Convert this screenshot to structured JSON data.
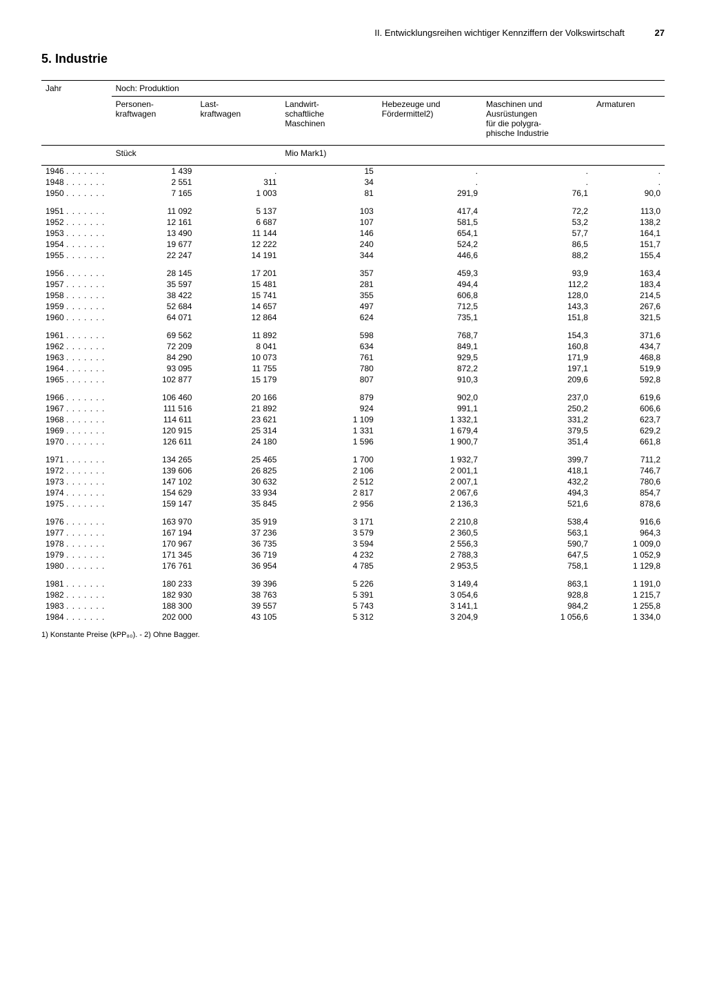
{
  "header": {
    "chapter": "II. Entwicklungsreihen wichtiger Kennziffern der Volkswirtschaft",
    "page_number": "27"
  },
  "section_title": "5. Industrie",
  "table": {
    "col_year": "Jahr",
    "col_group": "Noch: Produktion",
    "columns": [
      "Personen-\nkraftwagen",
      "Last-\nkraftwagen",
      "Landwirt-\nschaftliche\nMaschinen",
      "Hebezeuge und\nFördermittel2)",
      "Maschinen und\nAusrüstungen\nfür die polygra-\nphische Industrie",
      "Armaturen"
    ],
    "unit_left": "Stück",
    "unit_right": "Mio Mark1)",
    "groups": [
      [
        {
          "y": "1946",
          "c": [
            "1 439",
            ".",
            "15",
            ".",
            ".",
            "."
          ]
        },
        {
          "y": "1948",
          "c": [
            "2 551",
            "311",
            "34",
            ".",
            ".",
            "."
          ]
        },
        {
          "y": "1950",
          "c": [
            "7 165",
            "1 003",
            "81",
            "291,9",
            "76,1",
            "90,0"
          ]
        }
      ],
      [
        {
          "y": "1951",
          "c": [
            "11 092",
            "5 137",
            "103",
            "417,4",
            "72,2",
            "113,0"
          ]
        },
        {
          "y": "1952",
          "c": [
            "12 161",
            "6 687",
            "107",
            "581,5",
            "53,2",
            "138,2"
          ]
        },
        {
          "y": "1953",
          "c": [
            "13 490",
            "11 144",
            "146",
            "654,1",
            "57,7",
            "164,1"
          ]
        },
        {
          "y": "1954",
          "c": [
            "19 677",
            "12 222",
            "240",
            "524,2",
            "86,5",
            "151,7"
          ]
        },
        {
          "y": "1955",
          "c": [
            "22 247",
            "14 191",
            "344",
            "446,6",
            "88,2",
            "155,4"
          ]
        }
      ],
      [
        {
          "y": "1956",
          "c": [
            "28 145",
            "17 201",
            "357",
            "459,3",
            "93,9",
            "163,4"
          ]
        },
        {
          "y": "1957",
          "c": [
            "35 597",
            "15 481",
            "281",
            "494,4",
            "112,2",
            "183,4"
          ]
        },
        {
          "y": "1958",
          "c": [
            "38 422",
            "15 741",
            "355",
            "606,8",
            "128,0",
            "214,5"
          ]
        },
        {
          "y": "1959",
          "c": [
            "52 684",
            "14 657",
            "497",
            "712,5",
            "143,3",
            "267,6"
          ]
        },
        {
          "y": "1960",
          "c": [
            "64 071",
            "12 864",
            "624",
            "735,1",
            "151,8",
            "321,5"
          ]
        }
      ],
      [
        {
          "y": "1961",
          "c": [
            "69 562",
            "11 892",
            "598",
            "768,7",
            "154,3",
            "371,6"
          ]
        },
        {
          "y": "1962",
          "c": [
            "72 209",
            "8 041",
            "634",
            "849,1",
            "160,8",
            "434,7"
          ]
        },
        {
          "y": "1963",
          "c": [
            "84 290",
            "10 073",
            "761",
            "929,5",
            "171,9",
            "468,8"
          ]
        },
        {
          "y": "1964",
          "c": [
            "93 095",
            "11 755",
            "780",
            "872,2",
            "197,1",
            "519,9"
          ]
        },
        {
          "y": "1965",
          "c": [
            "102 877",
            "15 179",
            "807",
            "910,3",
            "209,6",
            "592,8"
          ]
        }
      ],
      [
        {
          "y": "1966",
          "c": [
            "106 460",
            "20 166",
            "879",
            "902,0",
            "237,0",
            "619,6"
          ]
        },
        {
          "y": "1967",
          "c": [
            "111 516",
            "21 892",
            "924",
            "991,1",
            "250,2",
            "606,6"
          ]
        },
        {
          "y": "1968",
          "c": [
            "114 611",
            "23 621",
            "1 109",
            "1 332,1",
            "331,2",
            "623,7"
          ]
        },
        {
          "y": "1969",
          "c": [
            "120 915",
            "25 314",
            "1 331",
            "1 679,4",
            "379,5",
            "629,2"
          ]
        },
        {
          "y": "1970",
          "c": [
            "126 611",
            "24 180",
            "1 596",
            "1 900,7",
            "351,4",
            "661,8"
          ]
        }
      ],
      [
        {
          "y": "1971",
          "c": [
            "134 265",
            "25 465",
            "1 700",
            "1 932,7",
            "399,7",
            "711,2"
          ]
        },
        {
          "y": "1972",
          "c": [
            "139 606",
            "26 825",
            "2 106",
            "2 001,1",
            "418,1",
            "746,7"
          ]
        },
        {
          "y": "1973",
          "c": [
            "147 102",
            "30 632",
            "2 512",
            "2 007,1",
            "432,2",
            "780,6"
          ]
        },
        {
          "y": "1974",
          "c": [
            "154 629",
            "33 934",
            "2 817",
            "2 067,6",
            "494,3",
            "854,7"
          ]
        },
        {
          "y": "1975",
          "c": [
            "159 147",
            "35 845",
            "2 956",
            "2 136,3",
            "521,6",
            "878,6"
          ]
        }
      ],
      [
        {
          "y": "1976",
          "c": [
            "163 970",
            "35 919",
            "3 171",
            "2 210,8",
            "538,4",
            "916,6"
          ]
        },
        {
          "y": "1977",
          "c": [
            "167 194",
            "37 236",
            "3 579",
            "2 360,5",
            "563,1",
            "964,3"
          ]
        },
        {
          "y": "1978",
          "c": [
            "170 967",
            "36 735",
            "3 594",
            "2 556,3",
            "590,7",
            "1 009,0"
          ]
        },
        {
          "y": "1979",
          "c": [
            "171 345",
            "36 719",
            "4 232",
            "2 788,3",
            "647,5",
            "1 052,9"
          ]
        },
        {
          "y": "1980",
          "c": [
            "176 761",
            "36 954",
            "4 785",
            "2 953,5",
            "758,1",
            "1 129,8"
          ]
        }
      ],
      [
        {
          "y": "1981",
          "c": [
            "180 233",
            "39 396",
            "5 226",
            "3 149,4",
            "863,1",
            "1 191,0"
          ]
        },
        {
          "y": "1982",
          "c": [
            "182 930",
            "38 763",
            "5 391",
            "3 054,6",
            "928,8",
            "1 215,7"
          ]
        },
        {
          "y": "1983",
          "c": [
            "188 300",
            "39 557",
            "5 743",
            "3 141,1",
            "984,2",
            "1 255,8"
          ]
        },
        {
          "y": "1984",
          "c": [
            "202 000",
            "43 105",
            "5 312",
            "3 204,9",
            "1 056,6",
            "1 334,0"
          ]
        }
      ]
    ]
  },
  "footnote": "1) Konstante Preise (kPP₈₀). - 2) Ohne Bagger."
}
